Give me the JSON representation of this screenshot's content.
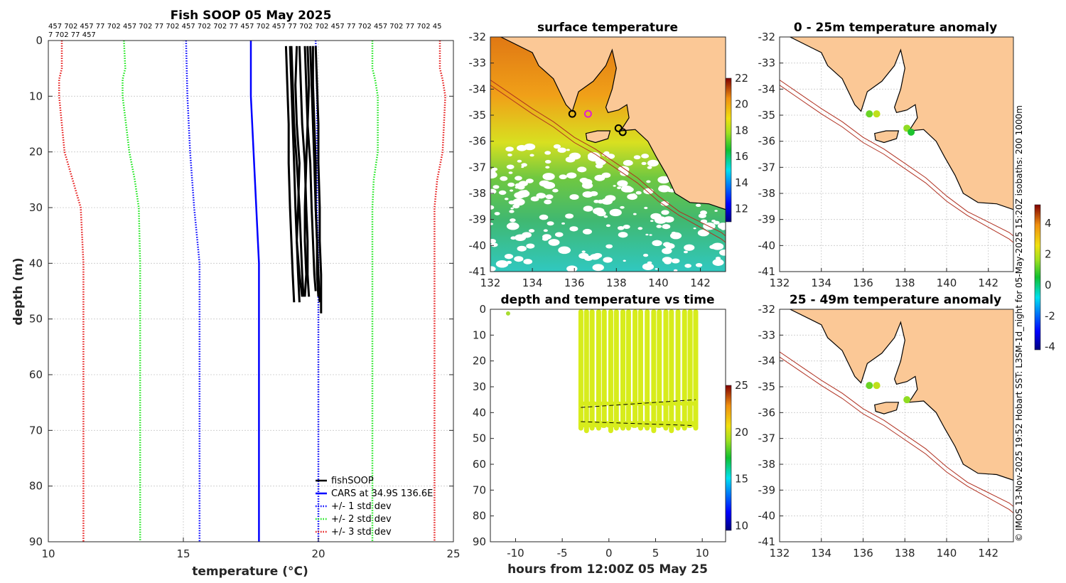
{
  "page_title": "Fish SOOP 05 May 2025",
  "side_caption": "© IMOS 13-Nov-2025 19:52 Hobart SST: L3SM-1d_night for 05-May-2025 15:20Z isobaths: 200  1000m",
  "colors": {
    "land": "#fbc896",
    "fishsoop": "#000000",
    "cars": "#0000ff",
    "std1": "#0000ff",
    "std2": "#19e619",
    "std3": "#e61919",
    "isobath": "#b03020",
    "scatter": "#d7ec1c"
  },
  "chart_data": [
    {
      "id": "profile",
      "type": "line",
      "title": "Fish SOOP 05 May 2025",
      "xlabel": "temperature (°C)",
      "ylabel": "depth (m)",
      "xlim": [
        10,
        25
      ],
      "ylim": [
        90,
        0
      ],
      "xticks": [
        10,
        15,
        20,
        25
      ],
      "yticks": [
        0,
        10,
        20,
        30,
        40,
        50,
        60,
        70,
        80,
        90
      ],
      "top_labels": [
        "457 702 457 77 702 457 702 77 702 457 702 702 77 457 702 457 77 702 702 457 77 702 457 702 77 702 45",
        "7 702 77 457"
      ],
      "legend": [
        {
          "label": "fishSOOP",
          "style": "solid",
          "color": "#000000"
        },
        {
          "label": "CARS at 34.9S 136.6E",
          "style": "solid",
          "color": "#0000ff"
        },
        {
          "label": "+/- 1 std dev",
          "style": "dotted",
          "color": "#0000ff"
        },
        {
          "label": "+/- 2 std dev",
          "style": "dotted",
          "color": "#19e619"
        },
        {
          "label": "+/- 3 std dev",
          "style": "dotted",
          "color": "#e61919"
        }
      ],
      "series": [
        {
          "name": "CARS",
          "color": "#0000ff",
          "style": "solid",
          "x": [
            17.5,
            17.5,
            17.6,
            17.7,
            17.8,
            17.8,
            17.8,
            17.8,
            17.8,
            17.8
          ],
          "y": [
            0,
            10,
            20,
            30,
            40,
            50,
            60,
            70,
            80,
            90
          ]
        },
        {
          "name": "-1 std",
          "color": "#0000ff",
          "style": "dotted",
          "x": [
            15.1,
            15.15,
            15.25,
            15.4,
            15.6,
            15.6,
            15.6,
            15.6,
            15.6,
            15.6
          ],
          "y": [
            0,
            10,
            20,
            30,
            40,
            50,
            60,
            70,
            80,
            90
          ]
        },
        {
          "name": "+1 std",
          "color": "#0000ff",
          "style": "dotted",
          "x": [
            19.9,
            19.95,
            19.95,
            19.95,
            20.0,
            20.0,
            20.0,
            20.0,
            20.0,
            20.0
          ],
          "y": [
            0,
            10,
            20,
            30,
            40,
            50,
            60,
            70,
            80,
            90
          ]
        },
        {
          "name": "-2 std",
          "color": "#19e619",
          "style": "dotted",
          "x": [
            12.8,
            12.85,
            12.75,
            12.75,
            13.0,
            13.2,
            13.35,
            13.4,
            13.4,
            13.4,
            13.4,
            13.4,
            13.4
          ],
          "y": [
            0,
            5,
            7,
            10,
            20,
            25,
            30,
            40,
            50,
            60,
            70,
            80,
            90
          ]
        },
        {
          "name": "+2 std",
          "color": "#19e619",
          "style": "dotted",
          "x": [
            22.0,
            22.0,
            22.1,
            22.2,
            22.2,
            22.05,
            22.0,
            22.0,
            22.0,
            22.0,
            22.0,
            22.0,
            22.0
          ],
          "y": [
            0,
            5,
            7,
            10,
            20,
            25,
            30,
            40,
            50,
            60,
            70,
            80,
            90
          ]
        },
        {
          "name": "-3 std",
          "color": "#e61919",
          "style": "dotted",
          "x": [
            10.5,
            10.5,
            10.4,
            10.4,
            10.6,
            10.9,
            11.2,
            11.3,
            11.3,
            11.3,
            11.3,
            11.3,
            11.3
          ],
          "y": [
            0,
            5,
            7,
            10,
            20,
            25,
            30,
            40,
            50,
            60,
            70,
            80,
            90
          ]
        },
        {
          "name": "+3 std",
          "color": "#e61919",
          "style": "dotted",
          "x": [
            24.5,
            24.5,
            24.6,
            24.7,
            24.6,
            24.4,
            24.3,
            24.3,
            24.3,
            24.3,
            24.3,
            24.3,
            24.3
          ],
          "y": [
            0,
            5,
            7,
            10,
            20,
            25,
            30,
            40,
            50,
            60,
            70,
            80,
            90
          ]
        },
        {
          "name": "fishSOOP 1",
          "color": "#000000",
          "style": "solid",
          "x": [
            18.8,
            18.85,
            18.9,
            18.9,
            18.95,
            19.0,
            19.05,
            19.1
          ],
          "y": [
            1,
            8,
            15,
            22,
            30,
            36,
            42,
            47
          ]
        },
        {
          "name": "fishSOOP 2",
          "color": "#000000",
          "style": "solid",
          "x": [
            19.0,
            19.05,
            19.1,
            19.2,
            19.3,
            19.35,
            19.4,
            19.45
          ],
          "y": [
            1,
            8,
            15,
            22,
            30,
            36,
            42,
            46
          ]
        },
        {
          "name": "fishSOOP 3",
          "color": "#000000",
          "style": "solid",
          "x": [
            19.3,
            19.35,
            19.4,
            19.5,
            19.55,
            19.6,
            19.6,
            19.65
          ],
          "y": [
            1,
            8,
            15,
            22,
            30,
            36,
            42,
            46
          ]
        },
        {
          "name": "fishSOOP 4",
          "color": "#000000",
          "style": "solid",
          "x": [
            19.5,
            19.55,
            19.6,
            19.7,
            19.75,
            19.8,
            19.85,
            19.9
          ],
          "y": [
            1,
            8,
            15,
            22,
            30,
            36,
            42,
            45
          ]
        },
        {
          "name": "fishSOOP 5",
          "color": "#000000",
          "style": "solid",
          "x": [
            19.7,
            19.75,
            19.8,
            19.85,
            19.9,
            19.95,
            19.95,
            20.0
          ],
          "y": [
            1,
            8,
            15,
            22,
            30,
            36,
            42,
            46
          ]
        },
        {
          "name": "fishSOOP 6",
          "color": "#000000",
          "style": "solid",
          "x": [
            19.9,
            19.95,
            20.0,
            20.0,
            20.05,
            20.05,
            20.1,
            20.1
          ],
          "y": [
            1,
            8,
            15,
            22,
            30,
            36,
            42,
            49
          ]
        },
        {
          "name": "fishSOOP 7",
          "color": "#000000",
          "style": "solid",
          "x": [
            19.8,
            19.8,
            19.85,
            19.9,
            19.9,
            19.95,
            20.0,
            20.05
          ],
          "y": [
            1,
            8,
            15,
            22,
            30,
            36,
            42,
            47
          ]
        },
        {
          "name": "fishSOOP 8",
          "color": "#000000",
          "style": "solid",
          "x": [
            19.6,
            19.65,
            19.6,
            19.55,
            19.5,
            19.5,
            19.55,
            19.5
          ],
          "y": [
            1,
            8,
            15,
            22,
            30,
            36,
            42,
            46
          ]
        },
        {
          "name": "fishSOOP 9",
          "color": "#000000",
          "style": "solid",
          "x": [
            19.2,
            19.15,
            19.2,
            19.3,
            19.25,
            19.2,
            19.3,
            19.4
          ],
          "y": [
            1,
            8,
            15,
            22,
            30,
            36,
            42,
            46
          ]
        },
        {
          "name": "fishSOOP 10",
          "color": "#000000",
          "style": "solid",
          "x": [
            18.95,
            19.0,
            19.05,
            19.1,
            19.15,
            19.2,
            19.25,
            19.3
          ],
          "y": [
            1,
            8,
            15,
            22,
            30,
            36,
            42,
            47
          ]
        }
      ]
    },
    {
      "id": "sst",
      "type": "heatmap",
      "title": "surface temperature",
      "xlim": [
        132,
        143.2
      ],
      "ylim": [
        -41,
        -32
      ],
      "xticks": [
        132,
        134,
        136,
        138,
        140,
        142
      ],
      "yticks": [
        -32,
        -33,
        -34,
        -35,
        -36,
        -37,
        -38,
        -39,
        -40,
        -41
      ],
      "colorbar": {
        "min": 11,
        "max": 22,
        "ticks": [
          12,
          14,
          16,
          18,
          20,
          22
        ]
      },
      "markers": [
        {
          "lon": 135.9,
          "lat": -34.95,
          "color": "#000000"
        },
        {
          "lon": 136.65,
          "lat": -34.95,
          "color": "#e020d0"
        },
        {
          "lon": 138.1,
          "lat": -35.5,
          "color": "#000000"
        },
        {
          "lon": 138.3,
          "lat": -35.65,
          "color": "#000000"
        }
      ]
    },
    {
      "id": "time",
      "type": "scatter",
      "title": "depth and temperature vs time",
      "xlabel": "hours from 12:00Z 05 May 25",
      "xlim": [
        -12.7,
        12.5
      ],
      "ylim": [
        90,
        0
      ],
      "xticks": [
        -10,
        -5,
        0,
        5,
        10
      ],
      "yticks": [
        0,
        10,
        20,
        30,
        40,
        50,
        60,
        70,
        80,
        90
      ],
      "colorbar": {
        "min": 9.5,
        "max": 25,
        "ticks": [
          10,
          15,
          20,
          25
        ]
      },
      "casts": [
        -3.0,
        -2.4,
        -1.8,
        -1.1,
        -0.5,
        0.2,
        0.8,
        1.5,
        2.1,
        2.8,
        3.4,
        4.1,
        4.8,
        5.4,
        6.1,
        6.7,
        7.4,
        8.1,
        8.7,
        9.3
      ],
      "cast_max_depth": [
        46,
        47,
        46,
        46,
        45,
        47,
        46,
        46,
        46,
        45,
        46,
        46,
        47,
        45,
        46,
        47,
        46,
        46,
        45,
        46
      ],
      "outlier": {
        "hours": -10.8,
        "depth": 0.5
      },
      "temperature": 19.5
    },
    {
      "id": "anom1",
      "type": "scatter",
      "title": "0 - 25m temperature anomaly",
      "xlim": [
        132,
        143.2
      ],
      "ylim": [
        -41,
        -32
      ],
      "xticks": [
        132,
        134,
        136,
        138,
        140,
        142
      ],
      "yticks": [
        -32,
        -33,
        -34,
        -35,
        -36,
        -37,
        -38,
        -39,
        -40,
        -41
      ],
      "points": [
        {
          "lon": 136.3,
          "lat": -34.95,
          "value": 1.2
        },
        {
          "lon": 136.65,
          "lat": -34.95,
          "value": 2.0
        },
        {
          "lon": 138.1,
          "lat": -35.5,
          "value": 1.5
        },
        {
          "lon": 138.3,
          "lat": -35.65,
          "value": 0.6
        }
      ]
    },
    {
      "id": "anom2",
      "type": "scatter",
      "title": "25 - 49m temperature anomaly",
      "xlim": [
        132,
        143.2
      ],
      "ylim": [
        -41,
        -32
      ],
      "xticks": [
        132,
        134,
        136,
        138,
        140,
        142
      ],
      "yticks": [
        -32,
        -33,
        -34,
        -35,
        -36,
        -37,
        -38,
        -39,
        -40,
        -41
      ],
      "points": [
        {
          "lon": 136.3,
          "lat": -34.95,
          "value": 1.2
        },
        {
          "lon": 136.65,
          "lat": -34.95,
          "value": 2.0
        },
        {
          "lon": 138.1,
          "lat": -35.5,
          "value": 1.5
        }
      ]
    },
    {
      "id": "anom_cbar",
      "type": "heatmap",
      "colorbar": {
        "min": -4.2,
        "max": 5.2,
        "ticks": [
          -4,
          -2,
          0,
          2,
          4
        ]
      }
    }
  ]
}
